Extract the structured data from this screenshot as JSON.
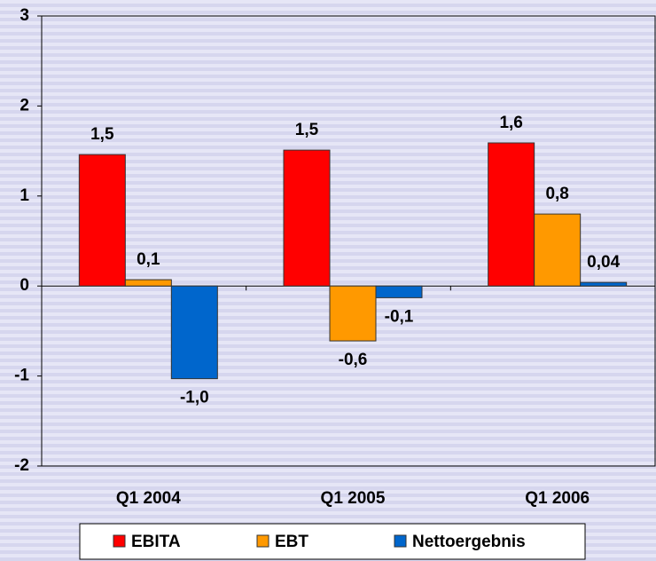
{
  "chart_data": {
    "type": "bar",
    "categories": [
      "Q1 2004",
      "Q1 2005",
      "Q1 2006"
    ],
    "series": [
      {
        "name": "EBITA",
        "color": "#ff0000",
        "values": [
          1.46,
          1.51,
          1.59
        ],
        "value_labels": [
          "1,5",
          "1,5",
          "1,6"
        ]
      },
      {
        "name": "EBT",
        "color": "#ff9900",
        "values": [
          0.07,
          -0.61,
          0.8
        ],
        "value_labels": [
          "0,1",
          "-0,6",
          "0,8"
        ]
      },
      {
        "name": "Nettoergebnis",
        "color": "#0066cc",
        "values": [
          -1.03,
          -0.13,
          0.04
        ],
        "value_labels": [
          "-1,0",
          "-0,1",
          "0,04"
        ]
      }
    ],
    "ylim": [
      -2,
      3
    ],
    "yticks": [
      -2,
      -1,
      0,
      1,
      2,
      3
    ],
    "legend": "bottom"
  }
}
